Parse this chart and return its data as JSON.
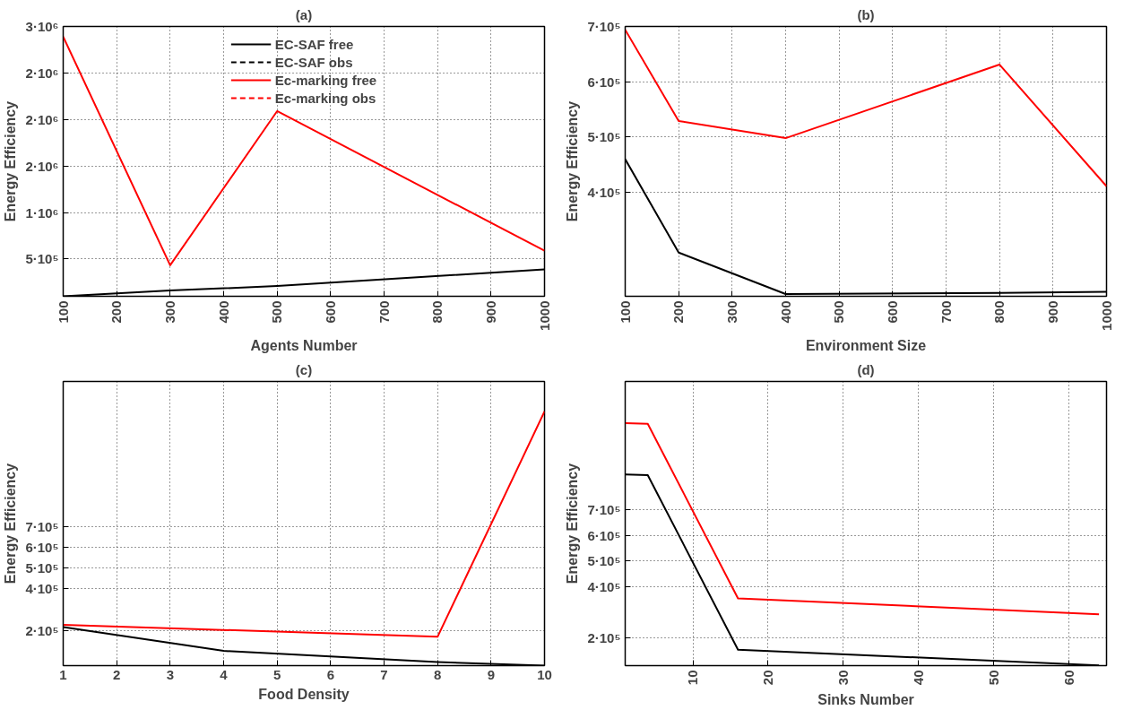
{
  "chart_data": [
    {
      "type": "line",
      "title": "(a)",
      "xlabel": "Agents Number",
      "ylabel": "Energy Efficiency",
      "x": [
        100,
        300,
        500,
        1000
      ],
      "xlim": [
        100,
        1000
      ],
      "xticks": [
        100,
        200,
        300,
        400,
        500,
        600,
        700,
        800,
        900,
        1000
      ],
      "ylim": [
        100000,
        3000000
      ],
      "yticks": [
        {
          "value": 500000,
          "label": "5·10⁵"
        },
        {
          "value": 1000000,
          "label": "1·10⁶"
        },
        {
          "value": 1500000,
          "label": "2·10⁶"
        },
        {
          "value": 2000000,
          "label": "2·10⁶"
        },
        {
          "value": 2500000,
          "label": "2·10⁶"
        },
        {
          "value": 3000000,
          "label": "3·10⁶"
        }
      ],
      "grid": true,
      "legend": "top",
      "series": [
        {
          "name": "EC-SAF free",
          "color": "#000000",
          "line_style": "solid",
          "values": [
            100000,
            162000,
            210000,
            390000
          ]
        },
        {
          "name": "EC-SAF obs",
          "color": "#000000",
          "line_style": "dashed",
          "values": [
            null,
            null,
            null,
            null
          ]
        },
        {
          "name": "Ec-marking free",
          "color": "#ff0000",
          "line_style": "solid",
          "values": [
            2890000,
            433000,
            2090000,
            590000
          ]
        },
        {
          "name": "Ec-marking obs",
          "color": "#ff0000",
          "line_style": "dashed",
          "values": [
            null,
            null,
            null,
            null
          ]
        }
      ]
    },
    {
      "type": "line",
      "title": "(b)",
      "xlabel": "Environment Size",
      "ylabel": "Energy Efficiency",
      "x": [
        100,
        200,
        400,
        800,
        1000
      ],
      "xlim": [
        100,
        1000
      ],
      "xticks": [
        100,
        200,
        300,
        400,
        500,
        600,
        700,
        800,
        900,
        1000
      ],
      "ylim": [
        212000,
        700000
      ],
      "yticks": [
        {
          "value": 400000,
          "label": "4·10⁵"
        },
        {
          "value": 500000,
          "label": "5·10⁵"
        },
        {
          "value": 600000,
          "label": "6·10⁵"
        },
        {
          "value": 700000,
          "label": "7·10⁵"
        }
      ],
      "grid": true,
      "series": [
        {
          "color": "#000000",
          "line_style": "solid",
          "values": [
            460000,
            291000,
            216000,
            218000,
            220000
          ]
        },
        {
          "color": "#ff0000",
          "line_style": "solid",
          "values": [
            694000,
            529000,
            498000,
            631000,
            411000
          ]
        }
      ]
    },
    {
      "type": "line",
      "title": "(c)",
      "xlabel": "Food Density",
      "ylabel": "Energy Efficiency",
      "xlim": [
        1,
        10
      ],
      "xticks": [
        1,
        2,
        3,
        4,
        5,
        6,
        7,
        8,
        9,
        10
      ],
      "ylim": [
        30000,
        1400000
      ],
      "yticks": [
        {
          "value": 200000,
          "label": "2·10⁵"
        },
        {
          "value": 400000,
          "label": "4·10⁵"
        },
        {
          "value": 500000,
          "label": "5·10⁵"
        },
        {
          "value": 600000,
          "label": "6·10⁵"
        },
        {
          "value": 700000,
          "label": "7·10⁵"
        }
      ],
      "grid": true,
      "series": [
        {
          "color": "#000000",
          "line_style": "solid",
          "x": [
            1,
            4,
            8,
            10
          ],
          "values": [
            216000,
            101000,
            47000,
            30000
          ]
        },
        {
          "color": "#ff0000",
          "line_style": "solid",
          "x": [
            1,
            8,
            10
          ],
          "values": [
            227000,
            169000,
            1255000
          ]
        }
      ]
    },
    {
      "type": "line",
      "title": "(d)",
      "xlabel": "Sinks Number",
      "ylabel": "Energy Efficiency",
      "x": [
        1,
        4,
        16,
        64
      ],
      "xlim": [
        1,
        65
      ],
      "xticks": [
        10,
        20,
        30,
        40,
        50,
        60
      ],
      "ylim": [
        93000,
        1200000
      ],
      "yticks": [
        {
          "value": 200000,
          "label": "2·10⁵"
        },
        {
          "value": 400000,
          "label": "4·10⁵"
        },
        {
          "value": 500000,
          "label": "5·10⁵"
        },
        {
          "value": 600000,
          "label": "6·10⁵"
        },
        {
          "value": 700000,
          "label": "7·10⁵"
        }
      ],
      "grid": true,
      "series": [
        {
          "color": "#000000",
          "line_style": "solid",
          "values": [
            838000,
            835000,
            155000,
            94000
          ]
        },
        {
          "color": "#ff0000",
          "line_style": "solid",
          "values": [
            1038000,
            1035000,
            355000,
            293000
          ]
        }
      ]
    }
  ]
}
